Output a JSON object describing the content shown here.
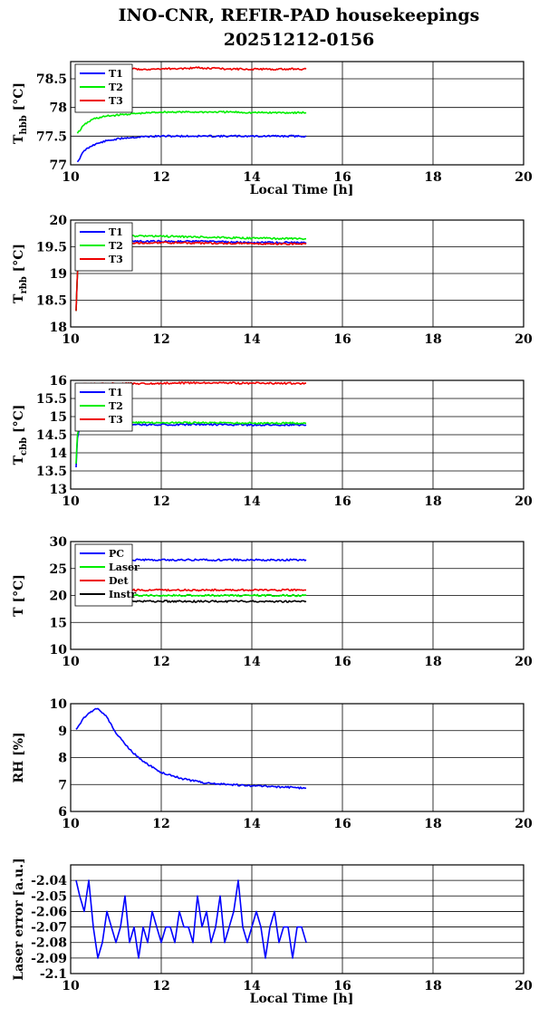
{
  "title_line1": "INO-CNR, REFIR-PAD housekeepings",
  "title_line2": "20251212-0156",
  "colors": {
    "T1": "#0000ff",
    "T2": "#00ee00",
    "T3": "#ee0000",
    "PC": "#0000ff",
    "Laser": "#00ee00",
    "Det": "#ee0000",
    "Instr": "#000000",
    "RH": "#0000ff",
    "error": "#0000ff"
  },
  "chart_data": [
    {
      "type": "line",
      "ylabel_main": "T",
      "ylabel_sub": "hbb",
      "ylabel_unit": " [°C]",
      "xlabel": "Local Time [h]",
      "xlim": [
        10,
        20
      ],
      "ylim": [
        77,
        78.8
      ],
      "xticks": [
        10,
        12,
        14,
        16,
        18,
        20
      ],
      "yticks": [
        77,
        77.5,
        78,
        78.5
      ],
      "ytick_labels": [
        "77",
        "77.5",
        "78",
        "78.5"
      ],
      "grid": true,
      "legend_position": "top-left",
      "series": [
        {
          "name": "T1",
          "color": "#0000ff",
          "x": [
            10.15,
            10.3,
            10.5,
            10.8,
            11.2,
            11.6,
            12.0,
            12.5,
            13.0,
            13.5,
            14.0,
            14.5,
            15.2
          ],
          "y": [
            77.05,
            77.25,
            77.35,
            77.42,
            77.47,
            77.49,
            77.5,
            77.5,
            77.5,
            77.5,
            77.5,
            77.5,
            77.5
          ]
        },
        {
          "name": "T2",
          "color": "#00ee00",
          "x": [
            10.15,
            10.3,
            10.5,
            10.8,
            11.2,
            11.6,
            12.0,
            12.5,
            13.0,
            13.5,
            14.0,
            14.5,
            15.2
          ],
          "y": [
            77.55,
            77.7,
            77.8,
            77.85,
            77.88,
            77.9,
            77.92,
            77.92,
            77.92,
            77.92,
            77.91,
            77.91,
            77.91
          ]
        },
        {
          "name": "T3",
          "color": "#ee0000",
          "x": [
            10.15,
            10.5,
            11.0,
            12.0,
            12.8,
            13.5,
            14.0,
            15.2
          ],
          "y": [
            78.66,
            78.66,
            78.67,
            78.67,
            78.69,
            78.67,
            78.67,
            78.67
          ]
        }
      ]
    },
    {
      "type": "line",
      "ylabel_main": "T",
      "ylabel_sub": "rbb",
      "ylabel_unit": " [°C]",
      "xlabel": "",
      "xlim": [
        10,
        20
      ],
      "ylim": [
        18,
        20
      ],
      "xticks": [
        10,
        12,
        14,
        16,
        18,
        20
      ],
      "yticks": [
        18,
        18.5,
        19,
        19.5,
        20
      ],
      "ytick_labels": [
        "18",
        "18.5",
        "19",
        "19.5",
        "20"
      ],
      "grid": true,
      "legend_position": "top-left",
      "series": [
        {
          "name": "T1",
          "color": "#0000ff",
          "x": [
            10.12,
            10.15,
            10.2,
            10.4,
            11.0,
            12.0,
            13.0,
            14.0,
            15.2
          ],
          "y": [
            18.3,
            19.0,
            19.5,
            19.58,
            19.6,
            19.6,
            19.6,
            19.58,
            19.58
          ]
        },
        {
          "name": "T2",
          "color": "#00ee00",
          "x": [
            10.12,
            10.15,
            10.2,
            10.4,
            11.0,
            12.0,
            13.0,
            14.0,
            15.2
          ],
          "y": [
            18.3,
            19.0,
            19.6,
            19.68,
            19.7,
            19.7,
            19.68,
            19.66,
            19.65
          ]
        },
        {
          "name": "T3",
          "color": "#ee0000",
          "x": [
            10.12,
            10.15,
            10.2,
            10.4,
            11.0,
            12.0,
            13.0,
            14.0,
            15.2
          ],
          "y": [
            18.3,
            19.0,
            19.5,
            19.55,
            19.57,
            19.58,
            19.57,
            19.56,
            19.55
          ]
        }
      ]
    },
    {
      "type": "line",
      "ylabel_main": "T",
      "ylabel_sub": "cbb",
      "ylabel_unit": " [°C]",
      "xlabel": "",
      "xlim": [
        10,
        20
      ],
      "ylim": [
        13,
        16
      ],
      "xticks": [
        10,
        12,
        14,
        16,
        18,
        20
      ],
      "yticks": [
        13,
        13.5,
        14,
        14.5,
        15,
        15.5,
        16
      ],
      "ytick_labels": [
        "13",
        "13.5",
        "14",
        "14.5",
        "15",
        "15.5",
        "16"
      ],
      "grid": true,
      "legend_position": "top-left",
      "series": [
        {
          "name": "T1",
          "color": "#0000ff",
          "x": [
            10.12,
            10.15,
            10.2,
            10.5,
            12.0,
            13.0,
            14.0,
            15.2
          ],
          "y": [
            13.6,
            14.4,
            14.75,
            14.78,
            14.78,
            14.78,
            14.77,
            14.77
          ]
        },
        {
          "name": "T2",
          "color": "#00ee00",
          "x": [
            10.12,
            10.15,
            10.2,
            10.5,
            12.0,
            13.0,
            14.0,
            15.2
          ],
          "y": [
            13.7,
            14.5,
            14.8,
            14.83,
            14.83,
            14.83,
            14.82,
            14.82
          ]
        },
        {
          "name": "T3",
          "color": "#ee0000",
          "x": [
            10.12,
            10.2,
            10.5,
            12.0,
            13.0,
            14.0,
            15.2
          ],
          "y": [
            15.9,
            15.9,
            15.9,
            15.92,
            15.93,
            15.92,
            15.92
          ]
        }
      ]
    },
    {
      "type": "line",
      "ylabel_main": "T [°C]",
      "ylabel_sub": "",
      "ylabel_unit": "",
      "xlabel": "",
      "xlim": [
        10,
        20
      ],
      "ylim": [
        10,
        30
      ],
      "xticks": [
        10,
        12,
        14,
        16,
        18,
        20
      ],
      "yticks": [
        10,
        15,
        20,
        25,
        30
      ],
      "ytick_labels": [
        "10",
        "15",
        "20",
        "25",
        "30"
      ],
      "grid": true,
      "legend_position": "top-left",
      "series": [
        {
          "name": "PC",
          "color": "#0000ff",
          "x": [
            10.12,
            12.0,
            14.0,
            15.2
          ],
          "y": [
            26.6,
            26.6,
            26.6,
            26.6
          ]
        },
        {
          "name": "Laser",
          "color": "#00ee00",
          "x": [
            10.12,
            12.0,
            14.0,
            15.2
          ],
          "y": [
            20.0,
            20.0,
            20.0,
            20.0
          ]
        },
        {
          "name": "Det",
          "color": "#ee0000",
          "x": [
            10.12,
            12.0,
            14.0,
            15.2
          ],
          "y": [
            21.0,
            21.0,
            21.0,
            21.0
          ]
        },
        {
          "name": "Instr",
          "color": "#000000",
          "x": [
            10.12,
            12.0,
            13.0,
            14.0,
            15.2
          ],
          "y": [
            19.0,
            18.9,
            18.9,
            18.9,
            18.9
          ]
        }
      ]
    },
    {
      "type": "line",
      "ylabel_main": "RH [%]",
      "ylabel_sub": "",
      "ylabel_unit": "",
      "xlabel": "",
      "xlim": [
        10,
        20
      ],
      "ylim": [
        6,
        10
      ],
      "xticks": [
        10,
        12,
        14,
        16,
        18,
        20
      ],
      "yticks": [
        6,
        7,
        8,
        9,
        10
      ],
      "ytick_labels": [
        "6",
        "7",
        "8",
        "9",
        "10"
      ],
      "grid": true,
      "legend_position": "none",
      "series": [
        {
          "name": "",
          "color": "#0000ff",
          "x": [
            10.12,
            10.3,
            10.5,
            10.6,
            10.8,
            11.0,
            11.3,
            11.6,
            12.0,
            12.5,
            13.0,
            13.5,
            14.0,
            14.5,
            15.0,
            15.2
          ],
          "y": [
            9.05,
            9.5,
            9.75,
            9.82,
            9.5,
            8.9,
            8.3,
            7.85,
            7.45,
            7.2,
            7.05,
            7.0,
            6.95,
            6.92,
            6.88,
            6.87
          ]
        }
      ]
    },
    {
      "type": "line",
      "ylabel_main": "Laser error [a.u.]",
      "ylabel_sub": "",
      "ylabel_unit": "",
      "xlabel": "Local Time [h]",
      "xlim": [
        10,
        20
      ],
      "ylim": [
        -2.1,
        -2.03
      ],
      "xticks": [
        10,
        12,
        14,
        16,
        18,
        20
      ],
      "yticks": [
        -2.1,
        -2.09,
        -2.08,
        -2.07,
        -2.06,
        -2.05,
        -2.04
      ],
      "ytick_labels": [
        "-2.1",
        "-2.09",
        "-2.08",
        "-2.07",
        "-2.06",
        "-2.05",
        "-2.04"
      ],
      "grid": true,
      "legend_position": "none",
      "series": [
        {
          "name": "",
          "color": "#0000ff",
          "x": [
            10.12,
            10.2,
            10.3,
            10.4,
            10.5,
            10.6,
            10.7,
            10.8,
            10.9,
            11.0,
            11.1,
            11.2,
            11.3,
            11.4,
            11.5,
            11.6,
            11.7,
            11.8,
            11.9,
            12.0,
            12.1,
            12.2,
            12.3,
            12.4,
            12.5,
            12.6,
            12.7,
            12.8,
            12.9,
            13.0,
            13.1,
            13.2,
            13.3,
            13.4,
            13.5,
            13.6,
            13.7,
            13.8,
            13.9,
            14.0,
            14.1,
            14.2,
            14.3,
            14.4,
            14.5,
            14.6,
            14.7,
            14.8,
            14.9,
            15.0,
            15.1,
            15.2
          ],
          "y": [
            -2.04,
            -2.05,
            -2.06,
            -2.04,
            -2.07,
            -2.09,
            -2.08,
            -2.06,
            -2.07,
            -2.08,
            -2.07,
            -2.05,
            -2.08,
            -2.07,
            -2.09,
            -2.07,
            -2.08,
            -2.06,
            -2.07,
            -2.08,
            -2.07,
            -2.07,
            -2.08,
            -2.06,
            -2.07,
            -2.07,
            -2.08,
            -2.05,
            -2.07,
            -2.06,
            -2.08,
            -2.07,
            -2.05,
            -2.08,
            -2.07,
            -2.06,
            -2.04,
            -2.07,
            -2.08,
            -2.07,
            -2.06,
            -2.07,
            -2.09,
            -2.07,
            -2.06,
            -2.08,
            -2.07,
            -2.07,
            -2.09,
            -2.07,
            -2.07,
            -2.08
          ]
        }
      ]
    }
  ]
}
